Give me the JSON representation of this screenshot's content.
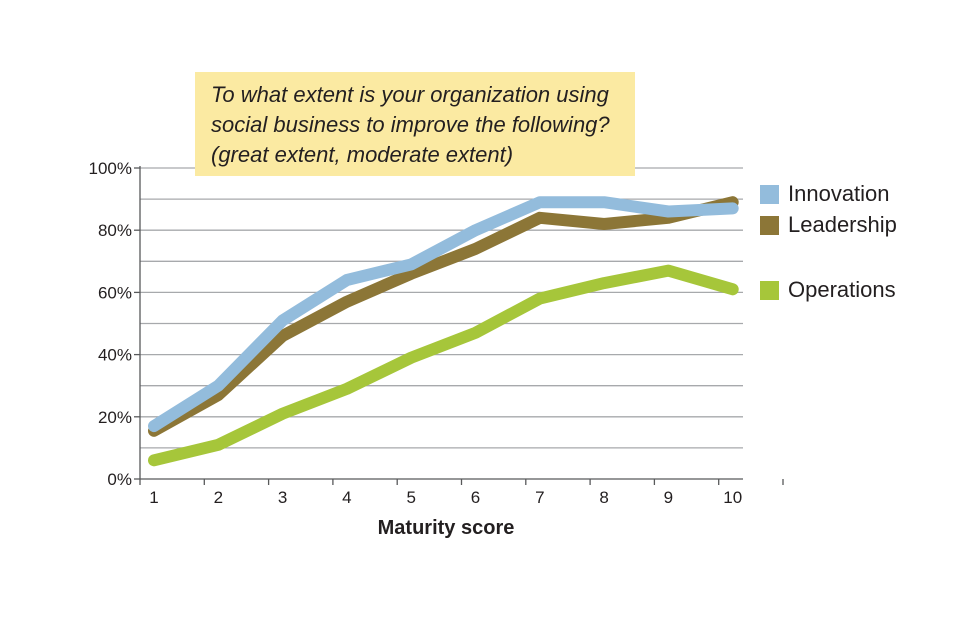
{
  "chart_data": {
    "type": "line",
    "title_lines": [
      "To what extent is your organization using",
      "social business to improve the following?",
      "(great extent, moderate extent)"
    ],
    "xlabel": "Maturity score",
    "ylabel": "",
    "x": [
      1,
      2,
      3,
      4,
      5,
      6,
      7,
      8,
      9,
      10
    ],
    "x_tick_labels": [
      "1",
      "2",
      "3",
      "4",
      "5",
      "6",
      "7",
      "8",
      "9",
      "10"
    ],
    "y_tick_labels": [
      "0%",
      "20%",
      "40%",
      "60%",
      "80%",
      "100%"
    ],
    "ylim": [
      0,
      100
    ],
    "grid": "horizontal every 10%",
    "legend_position": "right",
    "series": [
      {
        "name": "Leadership",
        "color": "#8c7637",
        "values": [
          15.5,
          27,
          46,
          57,
          66,
          74,
          84,
          82,
          84,
          89
        ]
      },
      {
        "name": "Operations",
        "color": "#a6c63a",
        "values": [
          6,
          11,
          21,
          29,
          39,
          47,
          58,
          63,
          67,
          61
        ]
      },
      {
        "name": "Innovation",
        "color": "#93bcdc",
        "values": [
          17,
          30,
          51,
          64,
          69,
          80,
          89,
          89,
          86,
          87
        ]
      }
    ],
    "legend_order": [
      "Innovation",
      "Leadership",
      "Operations"
    ]
  }
}
